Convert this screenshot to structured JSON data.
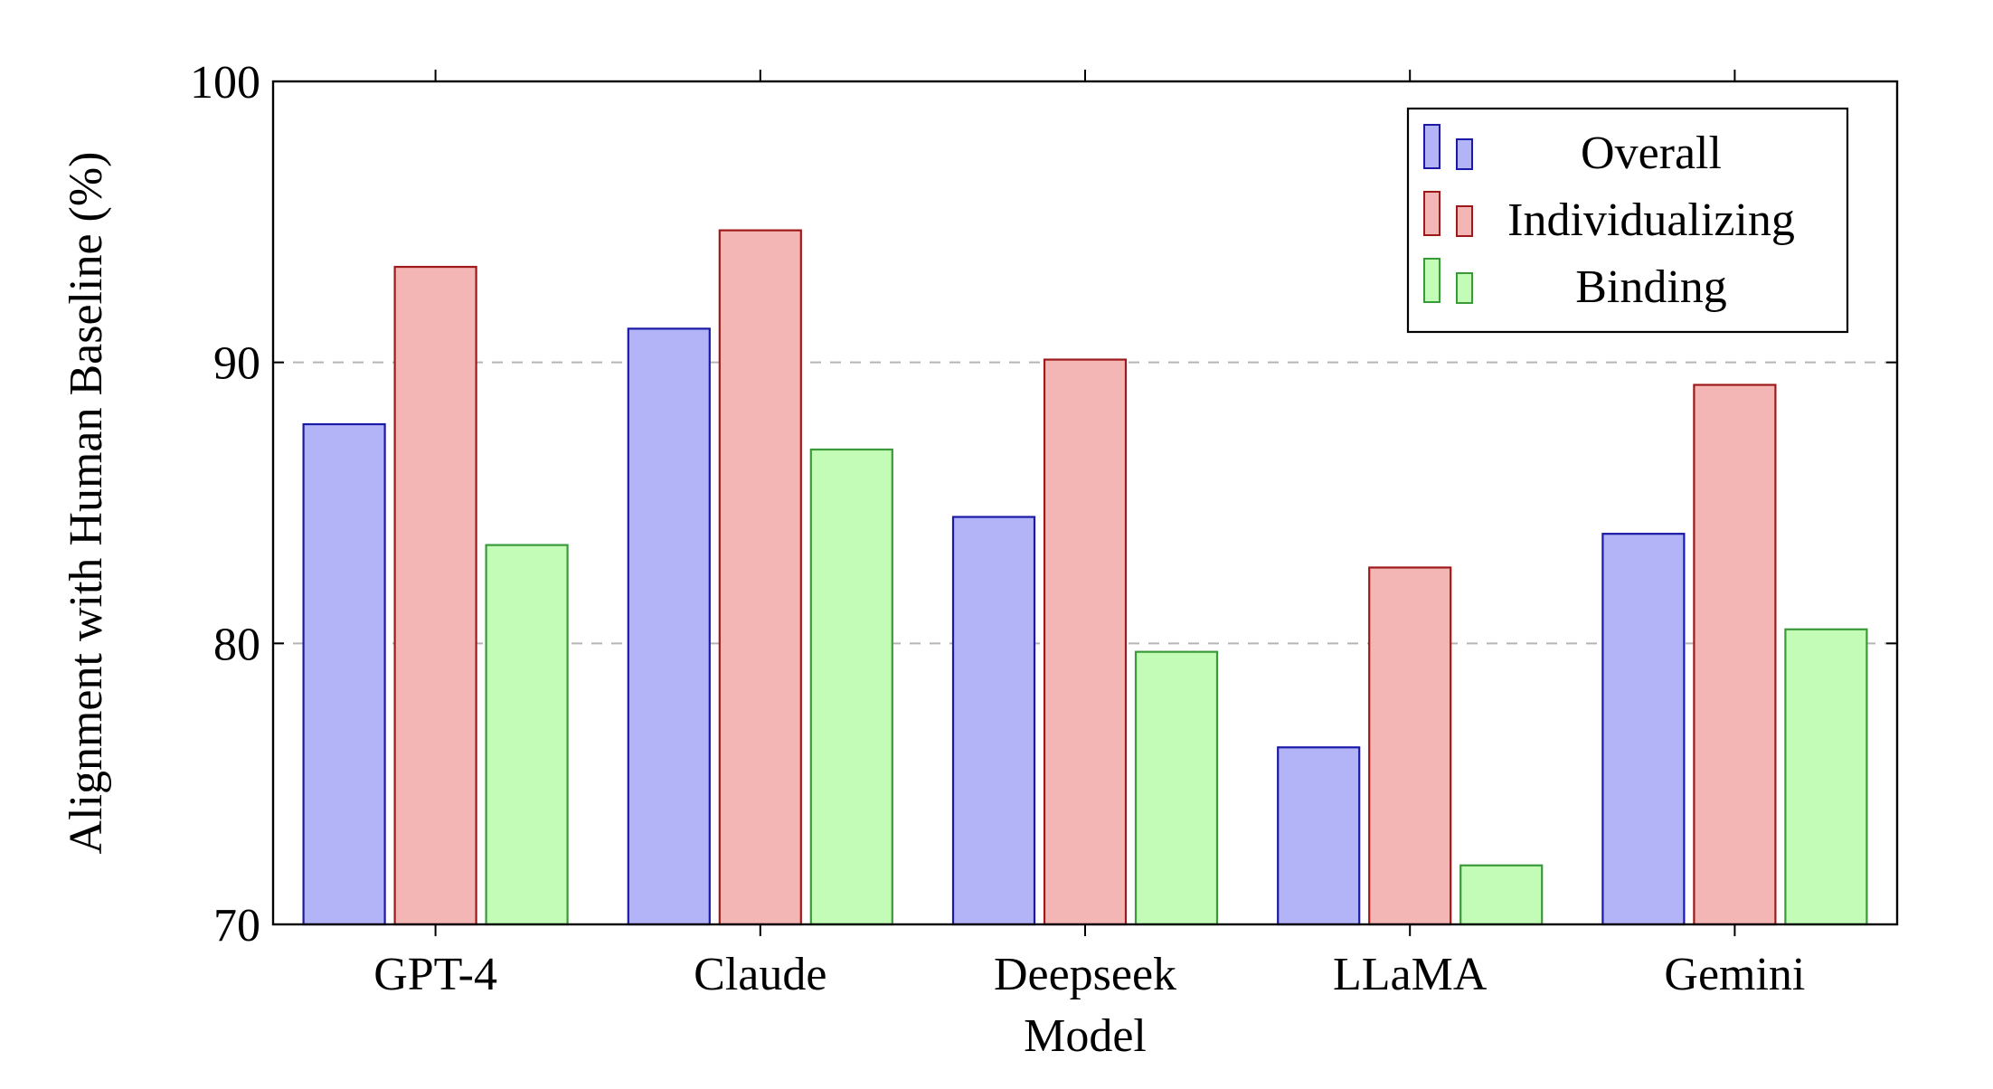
{
  "chart_data": {
    "type": "bar",
    "title": "",
    "xlabel": "Model",
    "ylabel": "Alignment with Human Baseline (%)",
    "categories": [
      "GPT-4",
      "Claude",
      "Deepseek",
      "LLaMA",
      "Gemini"
    ],
    "ylim": [
      70,
      100
    ],
    "yticks": [
      70,
      80,
      90,
      100
    ],
    "grid": "horizontal dashed at 80 and 90",
    "legend_position": "top-right",
    "series": [
      {
        "name": "Overall",
        "values": [
          87.8,
          91.2,
          84.5,
          76.3,
          83.9
        ],
        "fill": "#b3b3f7",
        "stroke": "#1a1aa6"
      },
      {
        "name": "Individualizing",
        "values": [
          93.4,
          94.7,
          90.1,
          82.7,
          89.2
        ],
        "fill": "#f4b5b5",
        "stroke": "#9e1a1a"
      },
      {
        "name": "Binding",
        "values": [
          83.5,
          86.9,
          79.7,
          72.1,
          80.5
        ],
        "fill": "#c2fcb6",
        "stroke": "#3a9a3a"
      }
    ]
  }
}
